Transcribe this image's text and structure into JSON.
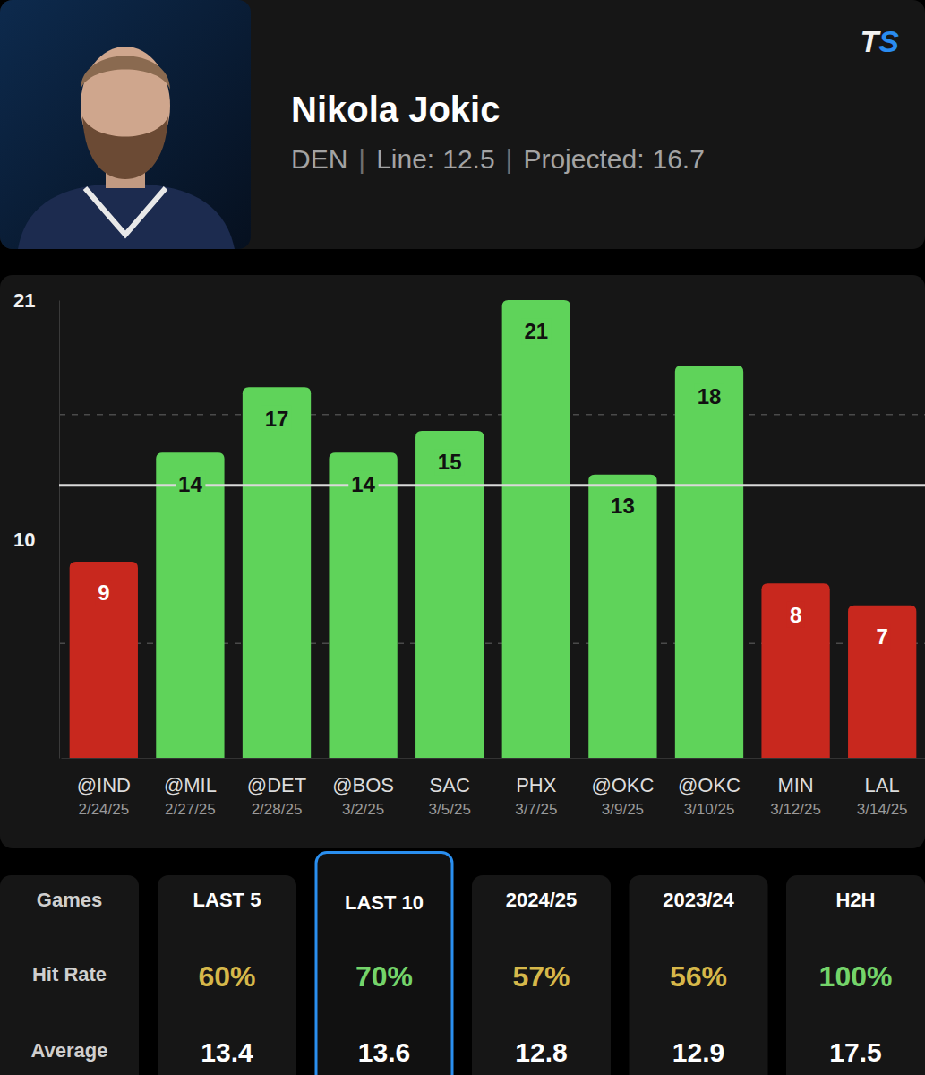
{
  "header": {
    "player": "Nikola Jokic",
    "team": "DEN",
    "separator": "|",
    "line_label": "Line:",
    "line": 12.5,
    "projected_label": "Projected:",
    "projected": 16.7,
    "logo": "TS"
  },
  "chart_data": {
    "type": "bar",
    "categories": [
      "@IND",
      "@MIL",
      "@DET",
      "@BOS",
      "SAC",
      "PHX",
      "@OKC",
      "@OKC",
      "MIN",
      "LAL"
    ],
    "dates": [
      "2/24/25",
      "2/27/25",
      "2/28/25",
      "3/2/25",
      "3/5/25",
      "3/7/25",
      "3/9/25",
      "3/10/25",
      "3/12/25",
      "3/14/25"
    ],
    "values": [
      9,
      14,
      17,
      14,
      15,
      21,
      13,
      18,
      8,
      7
    ],
    "colors": [
      "#c8281e",
      "#5fd35a",
      "#5fd35a",
      "#5fd35a",
      "#5fd35a",
      "#5fd35a",
      "#5fd35a",
      "#5fd35a",
      "#c8281e",
      "#c8281e"
    ],
    "ylim": [
      0,
      21
    ],
    "yticks": [
      10,
      21
    ],
    "grid_values": [
      5.25,
      15.75
    ],
    "data_labels": true
  },
  "stats": {
    "row_labels": [
      "Games",
      "Hit Rate",
      "Average"
    ],
    "selected": "LAST 10",
    "columns": [
      {
        "label": "LAST 5",
        "hit_rate": 60,
        "hit_rate_label": "60%",
        "hit_rate_color": "#d6b84a",
        "average": 13.4
      },
      {
        "label": "LAST 10",
        "hit_rate": 70,
        "hit_rate_label": "70%",
        "hit_rate_color": "#74d46a",
        "average": 13.6
      },
      {
        "label": "2024/25",
        "hit_rate": 57,
        "hit_rate_label": "57%",
        "hit_rate_color": "#d6b84a",
        "average": 12.8
      },
      {
        "label": "2023/24",
        "hit_rate": 56,
        "hit_rate_label": "56%",
        "hit_rate_color": "#d6b84a",
        "average": 12.9
      },
      {
        "label": "H2H",
        "hit_rate": 100,
        "hit_rate_label": "100%",
        "hit_rate_color": "#74d46a",
        "average": 17.5
      }
    ]
  }
}
